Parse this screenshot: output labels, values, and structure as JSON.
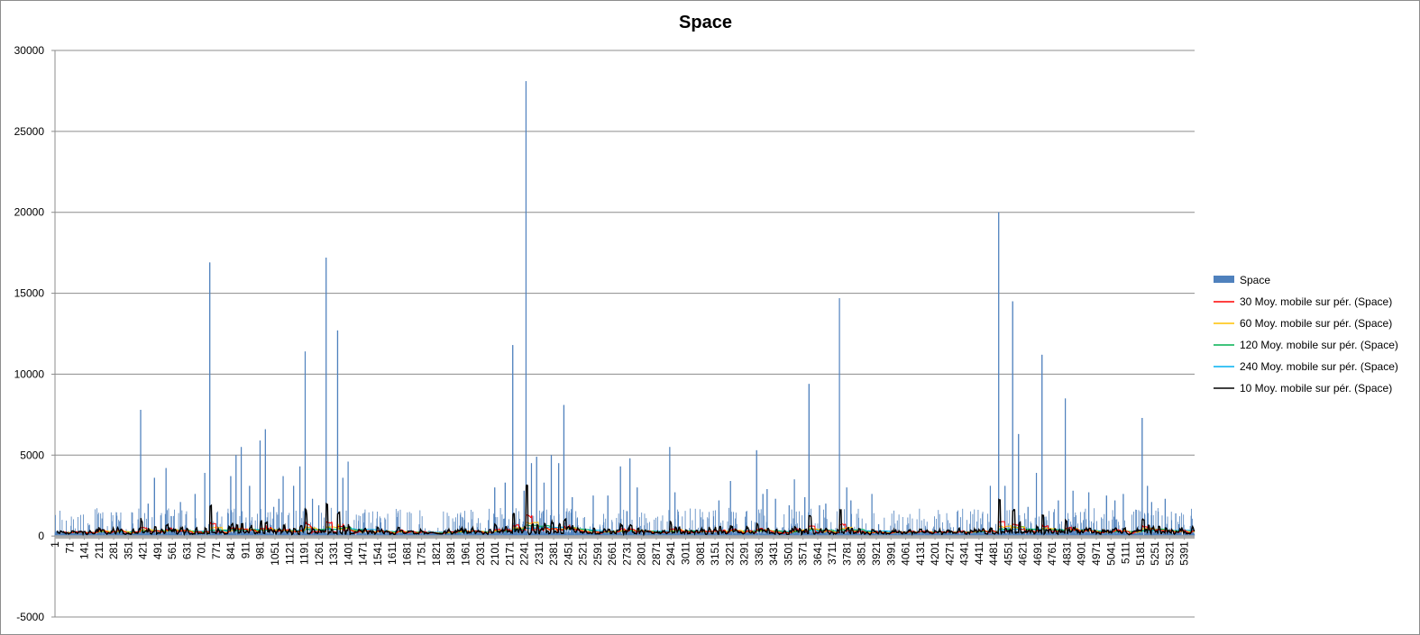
{
  "chart_data": {
    "type": "bar",
    "title": "Space",
    "xlabel": "",
    "ylabel": "",
    "ylim": [
      -5000,
      30000
    ],
    "ytick_step": 5000,
    "y_ticks": [
      "30000",
      "25000",
      "20000",
      "15000",
      "10000",
      "5000",
      "0",
      "-5000"
    ],
    "x_tick_labels": [
      "1",
      "71",
      "141",
      "211",
      "281",
      "351",
      "421",
      "491",
      "561",
      "631",
      "701",
      "771",
      "841",
      "911",
      "981",
      "1051",
      "1121",
      "1191",
      "1261",
      "1331",
      "1401",
      "1471",
      "1541",
      "1611",
      "1681",
      "1751",
      "1821",
      "1891",
      "1961",
      "2031",
      "2101",
      "2171",
      "2241",
      "2311",
      "2381",
      "2451",
      "2521",
      "2591",
      "2661",
      "2731",
      "2801",
      "2871",
      "2941",
      "3011",
      "3081",
      "3151",
      "3221",
      "3291",
      "3361",
      "3431",
      "3501",
      "3571",
      "3641",
      "3711",
      "3781",
      "3851",
      "3921",
      "3991",
      "4061",
      "4131",
      "4201",
      "4271",
      "4341",
      "4411",
      "4481",
      "4551",
      "4621",
      "4691",
      "4761",
      "4831",
      "4901",
      "4971",
      "5041",
      "5111",
      "5181",
      "5251",
      "5321",
      "5391"
    ],
    "x_range": [
      1,
      5440
    ],
    "grid": true,
    "legend_position": "right",
    "series": [
      {
        "name": "Space",
        "color": "#4f81bd",
        "kind": "bar",
        "peaks": [
          [
            410,
            7800
          ],
          [
            446,
            2000
          ],
          [
            476,
            3600
          ],
          [
            531,
            4200
          ],
          [
            600,
            2100
          ],
          [
            670,
            2600
          ],
          [
            716,
            3900
          ],
          [
            740,
            16900
          ],
          [
            840,
            3700
          ],
          [
            865,
            5000
          ],
          [
            890,
            5500
          ],
          [
            930,
            3100
          ],
          [
            980,
            5900
          ],
          [
            1005,
            6600
          ],
          [
            1045,
            1800
          ],
          [
            1070,
            2300
          ],
          [
            1090,
            3700
          ],
          [
            1140,
            3100
          ],
          [
            1170,
            4300
          ],
          [
            1195,
            11400
          ],
          [
            1230,
            2300
          ],
          [
            1260,
            1900
          ],
          [
            1295,
            17200
          ],
          [
            1350,
            12700
          ],
          [
            1375,
            3600
          ],
          [
            1400,
            4600
          ],
          [
            2100,
            3000
          ],
          [
            2150,
            3300
          ],
          [
            2186,
            11800
          ],
          [
            2240,
            2800
          ],
          [
            2249,
            28100
          ],
          [
            2275,
            4500
          ],
          [
            2300,
            4900
          ],
          [
            2335,
            3300
          ],
          [
            2370,
            5000
          ],
          [
            2405,
            4500
          ],
          [
            2430,
            8100
          ],
          [
            2470,
            2400
          ],
          [
            2570,
            2500
          ],
          [
            2640,
            2500
          ],
          [
            2700,
            4300
          ],
          [
            2745,
            4800
          ],
          [
            2780,
            3000
          ],
          [
            2935,
            5500
          ],
          [
            2960,
            2700
          ],
          [
            3170,
            2200
          ],
          [
            3225,
            3400
          ],
          [
            3350,
            5300
          ],
          [
            3380,
            2600
          ],
          [
            3400,
            2900
          ],
          [
            3440,
            2300
          ],
          [
            3505,
            1900
          ],
          [
            3530,
            3500
          ],
          [
            3580,
            2400
          ],
          [
            3600,
            9400
          ],
          [
            3650,
            1900
          ],
          [
            3680,
            2000
          ],
          [
            3745,
            14700
          ],
          [
            3780,
            3000
          ],
          [
            3800,
            2200
          ],
          [
            3900,
            2600
          ],
          [
            4465,
            3100
          ],
          [
            4505,
            20000
          ],
          [
            4535,
            3100
          ],
          [
            4572,
            14500
          ],
          [
            4600,
            6300
          ],
          [
            4645,
            1800
          ],
          [
            4685,
            3900
          ],
          [
            4712,
            11200
          ],
          [
            4790,
            2200
          ],
          [
            4823,
            8500
          ],
          [
            4860,
            2800
          ],
          [
            4935,
            2700
          ],
          [
            5020,
            2500
          ],
          [
            5060,
            2200
          ],
          [
            5100,
            2600
          ],
          [
            5190,
            7300
          ],
          [
            5215,
            3100
          ],
          [
            5235,
            2100
          ],
          [
            5300,
            2300
          ],
          [
            5350,
            1400
          ]
        ]
      },
      {
        "name": "30 Moy. mobile sur pér. (Space)",
        "color": "#ff0000",
        "kind": "line"
      },
      {
        "name": "60 Moy. mobile sur pér. (Space)",
        "color": "#ffc000",
        "kind": "line"
      },
      {
        "name": "120 Moy. mobile sur pér. (Space)",
        "color": "#00b050",
        "kind": "line"
      },
      {
        "name": "240 Moy. mobile sur pér. (Space)",
        "color": "#00b0f0",
        "kind": "line"
      },
      {
        "name": "10 Moy. mobile sur pér. (Space)",
        "color": "#000000",
        "kind": "line"
      }
    ]
  }
}
